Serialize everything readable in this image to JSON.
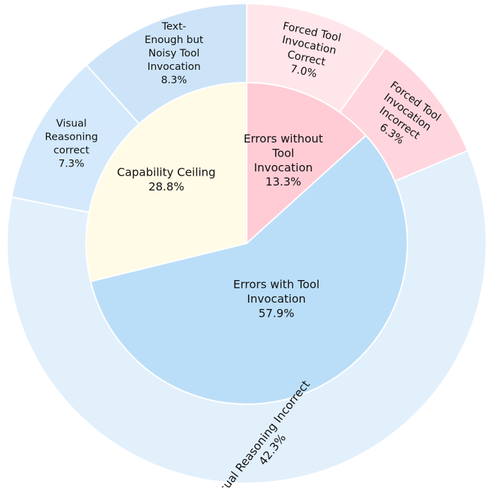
{
  "chart_data": {
    "type": "pie",
    "inner_ring": [
      {
        "label": "Errors without Tool Invocation",
        "value": 13.3,
        "value_label": "13.3%",
        "color": "#ffccd5"
      },
      {
        "label": "Errors with Tool Invocation",
        "value": 57.9,
        "value_label": "57.9%",
        "color": "#bbdef8"
      },
      {
        "label": "Capability Ceiling",
        "value": 28.8,
        "value_label": "28.8%",
        "color": "#fffbe6"
      }
    ],
    "outer_ring": [
      {
        "label": "Forced Tool Invocation Correct",
        "value": 7.0,
        "value_label": "7.0%",
        "color": "#ffe6ea"
      },
      {
        "label": "Forced Tool Invocation Incorrect",
        "value": 6.3,
        "value_label": "6.3%",
        "color": "#ffd6de"
      },
      {
        "label": "Visual Reasoning Incorrect",
        "value": 42.3,
        "value_label": "42.3%",
        "color": "#e2f0fc"
      },
      {
        "label": "Visual Reasoning correct",
        "value": 7.3,
        "value_label": "7.3%",
        "color": "#d4e9fb"
      },
      {
        "label": "Text-Enough but Noisy Tool Invocation",
        "value": 8.3,
        "value_label": "8.3%",
        "color": "#cde4f8"
      }
    ]
  }
}
